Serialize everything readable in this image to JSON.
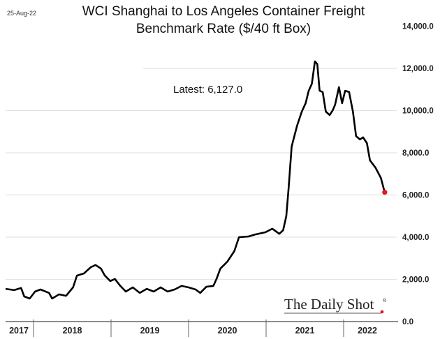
{
  "date_stamp": "25-Aug-22",
  "chart_data": {
    "type": "line",
    "title": "WCI Shanghai to Los Angeles Container Freight Benchmark Rate ($/40 ft Box)",
    "title_lines": [
      "WCI Shanghai to Los Angeles Container Freight",
      "Benchmark Rate ($/40 ft Box)"
    ],
    "xlabel": "",
    "ylabel": "",
    "ylim": [
      0,
      14000
    ],
    "xlim": [
      2017.64,
      2022.65
    ],
    "y_ticks": [
      0,
      2000,
      4000,
      6000,
      8000,
      10000,
      12000,
      14000
    ],
    "y_tick_labels": [
      "0.0",
      "2,000.0",
      "4,000.0",
      "6,000.0",
      "8,000.0",
      "10,000.0",
      "12,000.0",
      "14,000.0"
    ],
    "x_tick_labels": [
      "2017",
      "2018",
      "2019",
      "2020",
      "2021",
      "2022"
    ],
    "grid": true,
    "annotation": "Latest:  6,127.0",
    "last_point_color": "#e8141c",
    "line_color": "#000000",
    "watermark": "The Daily Shot",
    "series": [
      {
        "name": "WCI Shanghai-Los Angeles",
        "x": [
          2017.64,
          2017.75,
          2017.84,
          2017.88,
          2017.95,
          2018.02,
          2018.09,
          2018.2,
          2018.24,
          2018.33,
          2018.42,
          2018.51,
          2018.56,
          2018.65,
          2018.74,
          2018.8,
          2018.87,
          2018.92,
          2018.99,
          2019.05,
          2019.12,
          2019.19,
          2019.28,
          2019.37,
          2019.46,
          2019.55,
          2019.64,
          2019.73,
          2019.82,
          2019.91,
          2020.0,
          2020.09,
          2020.15,
          2020.23,
          2020.32,
          2020.36,
          2020.41,
          2020.5,
          2020.59,
          2020.65,
          2020.77,
          2020.86,
          2020.99,
          2021.08,
          2021.17,
          2021.22,
          2021.26,
          2021.29,
          2021.33,
          2021.4,
          2021.46,
          2021.51,
          2021.55,
          2021.59,
          2021.63,
          2021.66,
          2021.69,
          2021.73,
          2021.77,
          2021.82,
          2021.86,
          2021.89,
          2021.94,
          2021.98,
          2022.02,
          2022.07,
          2022.12,
          2022.16,
          2022.21,
          2022.25,
          2022.3,
          2022.34,
          2022.41,
          2022.48,
          2022.53
        ],
        "values": [
          1550,
          1490,
          1590,
          1190,
          1090,
          1420,
          1520,
          1360,
          1090,
          1290,
          1220,
          1620,
          2180,
          2280,
          2580,
          2680,
          2510,
          2180,
          1920,
          2020,
          1690,
          1420,
          1620,
          1360,
          1550,
          1420,
          1620,
          1420,
          1520,
          1690,
          1620,
          1520,
          1360,
          1650,
          1690,
          2020,
          2510,
          2840,
          3340,
          4000,
          4030,
          4130,
          4230,
          4400,
          4160,
          4330,
          5000,
          6310,
          8300,
          9290,
          9950,
          10350,
          10940,
          11270,
          12330,
          12200,
          10940,
          10880,
          9950,
          9790,
          10020,
          10280,
          11110,
          10350,
          10940,
          10880,
          9950,
          8790,
          8630,
          8730,
          8460,
          7640,
          7300,
          6810,
          6127
        ]
      }
    ]
  }
}
